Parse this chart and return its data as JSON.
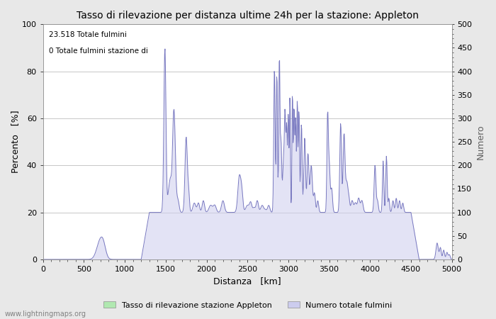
{
  "title": "Tasso di rilevazione per distanza ultime 24h per la stazione: Appleton",
  "xlabel": "Distanza   [km]",
  "ylabel_left": "Percento   [%]",
  "ylabel_right": "Numero",
  "annotation_line1": "23.518 Totale fulmini",
  "annotation_line2": "0 Totale fulmini stazione di",
  "xlim": [
    0,
    5000
  ],
  "ylim_left": [
    0,
    100
  ],
  "ylim_right": [
    0,
    500
  ],
  "xticks": [
    0,
    500,
    1000,
    1500,
    2000,
    2500,
    3000,
    3500,
    4000,
    4500,
    5000
  ],
  "yticks_left": [
    0,
    20,
    40,
    60,
    80,
    100
  ],
  "yticks_right": [
    0,
    50,
    100,
    150,
    200,
    250,
    300,
    350,
    400,
    450,
    500
  ],
  "legend_label_green": "Tasso di rilevazione stazione Appleton",
  "legend_label_blue": "Numero totale fulmini",
  "watermark": "www.lightningmaps.org",
  "line_color": "#7878c0",
  "fill_color_blue": "#ccccee",
  "fill_color_green": "#b0e8b0",
  "bg_color": "#e8e8e8",
  "plot_bg_color": "#ffffff",
  "grid_color": "#b0b0b0",
  "title_fontsize": 10,
  "label_fontsize": 9,
  "tick_fontsize": 8
}
